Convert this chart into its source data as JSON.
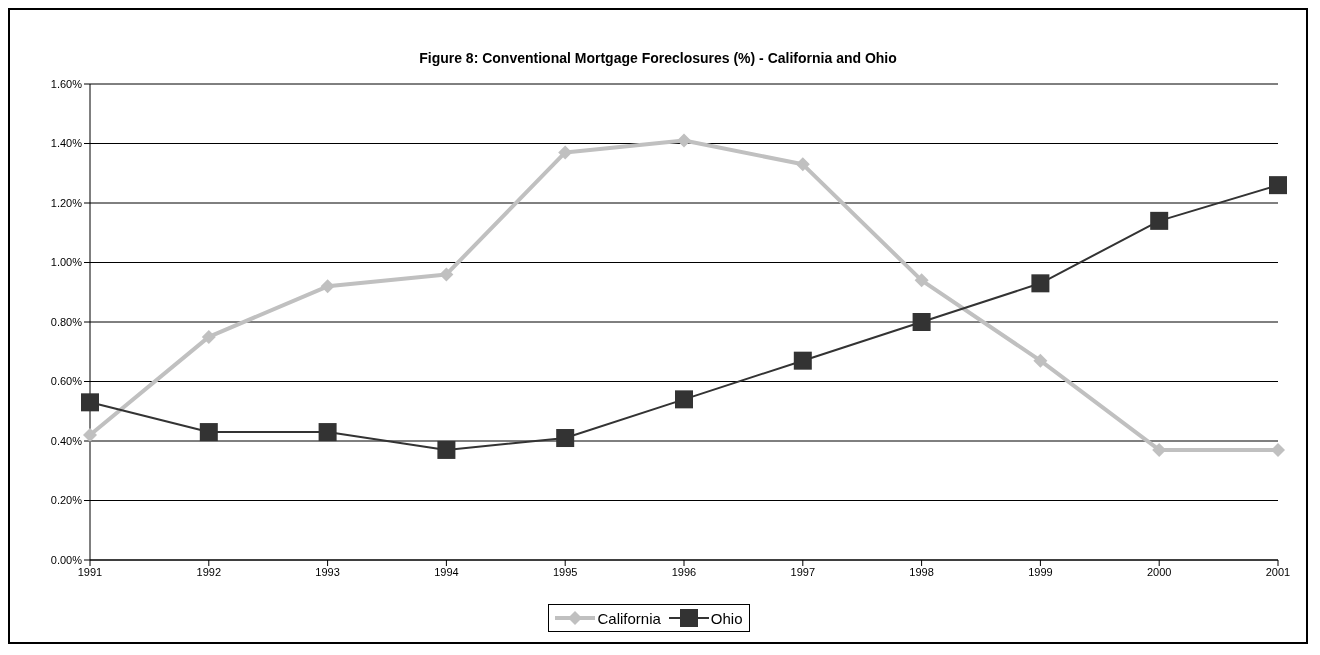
{
  "chart_data": {
    "type": "line",
    "title": "Figure 8: Conventional Mortgage Foreclosures (%) - California and Ohio",
    "categories": [
      "1991",
      "1992",
      "1993",
      "1994",
      "1995",
      "1996",
      "1997",
      "1998",
      "1999",
      "2000",
      "2001"
    ],
    "series": [
      {
        "name": "California",
        "color": "#c0c0c0",
        "marker": "diamond",
        "values": [
          0.42,
          0.75,
          0.92,
          0.96,
          1.37,
          1.41,
          1.33,
          0.94,
          0.67,
          0.37,
          0.37
        ]
      },
      {
        "name": "Ohio",
        "color": "#333333",
        "marker": "square",
        "values": [
          0.53,
          0.43,
          0.43,
          0.37,
          0.41,
          0.54,
          0.67,
          0.8,
          0.93,
          1.14,
          1.26
        ]
      }
    ],
    "ylim": [
      0,
      1.6
    ],
    "yticks": [
      {
        "value": 0,
        "label": "0.00%"
      },
      {
        "value": 0.2,
        "label": "0.20%"
      },
      {
        "value": 0.4,
        "label": "0.40%"
      },
      {
        "value": 0.6,
        "label": "0.60%"
      },
      {
        "value": 0.8,
        "label": "0.80%"
      },
      {
        "value": 1.0,
        "label": "1.00%"
      },
      {
        "value": 1.2,
        "label": "1.20%"
      },
      {
        "value": 1.4,
        "label": "1.40%"
      },
      {
        "value": 1.6,
        "label": "1.60%"
      }
    ],
    "grid": "y",
    "legend": "bottom",
    "line_style": "solid"
  }
}
